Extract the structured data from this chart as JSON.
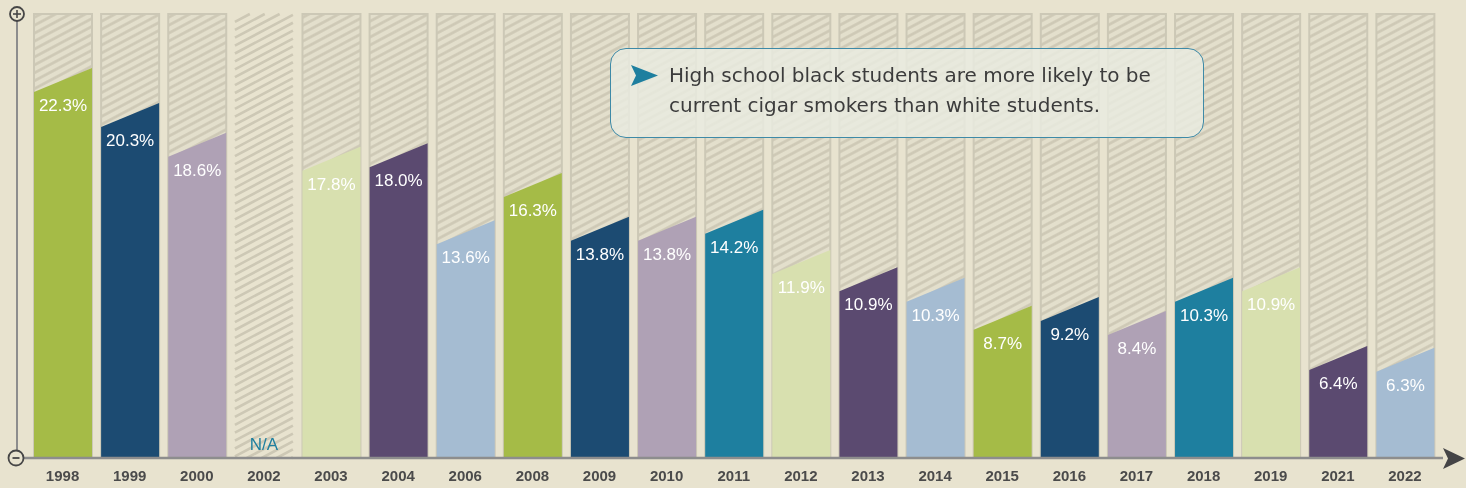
{
  "chart_data": {
    "type": "bar",
    "categories": [
      "1998",
      "1999",
      "2000",
      "2002",
      "2003",
      "2004",
      "2006",
      "2008",
      "2009",
      "2010",
      "2011",
      "2012",
      "2013",
      "2014",
      "2015",
      "2016",
      "2017",
      "2018",
      "2019",
      "2021",
      "2022"
    ],
    "values": [
      22.3,
      20.3,
      18.6,
      null,
      17.8,
      18.0,
      13.6,
      16.3,
      13.8,
      13.8,
      14.2,
      11.9,
      10.9,
      10.3,
      8.7,
      9.2,
      8.4,
      10.3,
      10.9,
      6.4,
      6.3
    ],
    "colors": [
      "#a5bb47",
      "#1c4b72",
      "#afa1b5",
      "#1e7f9f",
      "#d8e0af",
      "#5b4a70",
      "#a5bcd2",
      "#a5bb47",
      "#1c4b72",
      "#afa1b5",
      "#1e7f9f",
      "#d8e0af",
      "#5b4a70",
      "#a5bcd2",
      "#a5bb47",
      "#1c4b72",
      "#afa1b5",
      "#1e7f9f",
      "#d8e0af",
      "#5b4a70",
      "#a5bcd2"
    ],
    "value_labels": [
      "22.3%",
      "20.3%",
      "18.6%",
      "N/A",
      "17.8%",
      "18.0%",
      "13.6%",
      "16.3%",
      "13.8%",
      "13.8%",
      "14.2%",
      "11.9%",
      "10.9%",
      "10.3%",
      "8.7%",
      "9.2%",
      "8.4%",
      "10.3%",
      "10.9%",
      "6.4%",
      "6.3%"
    ],
    "annotations": [
      "High school black students are more likely to be current cigar smokers than white students."
    ],
    "tick_labels": "x"
  }
}
